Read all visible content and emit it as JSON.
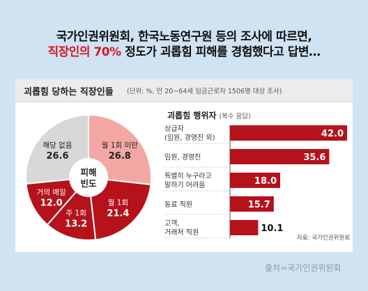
{
  "headline": {
    "line1": "국가인권위원회, 한국노동연구원 등의 조사에 따르면,",
    "line2_red": "직장인의 70%",
    "line2_rest": " 정도가 괴롭힘 피해를 경험했다고 답변…"
  },
  "card": {
    "title": "괴롭힘 당하는 직장인들",
    "subtitle": "(단위: %, 만 20~64세 임금근로자 1506명 대상 조사)"
  },
  "source": "출처=국가인권위원회",
  "chart_data": [
    {
      "type": "pie",
      "center_label": [
        "피해",
        "빈도"
      ],
      "slices": [
        {
          "label": "월 1회 미만",
          "value": 26.8,
          "color": "#f2a7a3",
          "text_color": "#222222"
        },
        {
          "label": "월 1회",
          "value": 21.4,
          "color": "#b5121b",
          "text_color": "#ffffff"
        },
        {
          "label": "주 1회",
          "value": 13.2,
          "color": "#b5121b",
          "text_color": "#ffffff"
        },
        {
          "label": "거의 매일",
          "value": 12.0,
          "color": "#b5121b",
          "text_color": "#ffffff"
        },
        {
          "label": "해당 없음",
          "value": 26.6,
          "color": "#d8d8d8",
          "text_color": "#222222"
        }
      ]
    },
    {
      "type": "bar",
      "orientation": "horizontal",
      "title": "괴롭힘 행위자",
      "title_note": "(복수 응답)",
      "categories": [
        [
          "상급자",
          "(임원, 경영진 외)"
        ],
        [
          "임원, 경영진"
        ],
        [
          "특별히 누구라고",
          "말하기 어려움"
        ],
        [
          "동료 직원"
        ],
        [
          "고객,",
          "거래처 직원"
        ]
      ],
      "values": [
        42.0,
        35.6,
        18.0,
        15.7,
        10.1
      ],
      "value_labels": [
        "42.0",
        "35.6",
        "18.0",
        "15.7",
        "10.1"
      ],
      "xlim": [
        0,
        43
      ],
      "bar_color": "#b5121b",
      "note": "자료: 국가인권위원회"
    }
  ]
}
